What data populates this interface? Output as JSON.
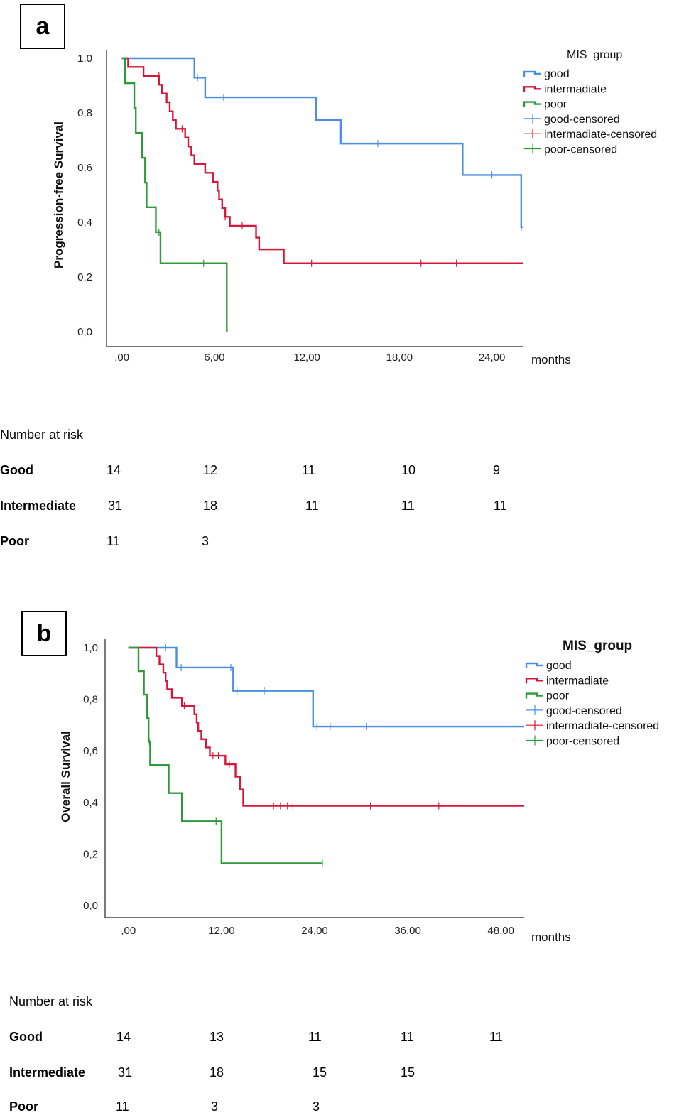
{
  "chart_data": [
    {
      "type": "line",
      "panel_label": "a",
      "ylabel": "Progression-free Survival",
      "xlabel": "months",
      "xlim": [
        -1,
        26
      ],
      "ylim": [
        0,
        1
      ],
      "x_ticks": [
        0,
        6,
        12,
        18,
        24
      ],
      "x_tick_labels": [
        ",00",
        "6,00",
        "12,00",
        "18,00",
        "24,00"
      ],
      "y_ticks": [
        0,
        0.2,
        0.4,
        0.6,
        0.8,
        1.0
      ],
      "y_tick_labels": [
        "0,0",
        "0,2",
        "0,4",
        "0,6",
        "0,8",
        "1,0"
      ],
      "legend_title": "MIS_group",
      "legend_position": "top-right",
      "legend_entries": [
        "good",
        "intermadiate",
        "poor",
        "good-censored",
        "intermadiate-censored",
        "poor-censored"
      ],
      "series": [
        {
          "name": "good",
          "color": "#4a90e2",
          "steps": [
            [
              0,
              1.0
            ],
            [
              4.7,
              0.929
            ],
            [
              5.4,
              0.857
            ],
            [
              12.6,
              0.774
            ],
            [
              14.2,
              0.688
            ],
            [
              22.1,
              0.573
            ],
            [
              25.9,
              0.382
            ]
          ],
          "end_x": 26.0,
          "censored": [
            [
              4.9,
              0.929
            ],
            [
              6.6,
              0.857
            ],
            [
              16.6,
              0.688
            ],
            [
              24.0,
              0.573
            ],
            [
              25.9,
              0.382
            ]
          ]
        },
        {
          "name": "intermadiate",
          "color": "#d6173a",
          "steps": [
            [
              0,
              1.0
            ],
            [
              0.4,
              0.968
            ],
            [
              1.4,
              0.935
            ],
            [
              2.4,
              0.903
            ],
            [
              2.6,
              0.871
            ],
            [
              2.9,
              0.839
            ],
            [
              3.1,
              0.806
            ],
            [
              3.3,
              0.774
            ],
            [
              3.5,
              0.742
            ],
            [
              4.1,
              0.71
            ],
            [
              4.3,
              0.677
            ],
            [
              4.5,
              0.645
            ],
            [
              4.7,
              0.613
            ],
            [
              5.4,
              0.581
            ],
            [
              5.9,
              0.548
            ],
            [
              6.2,
              0.516
            ],
            [
              6.3,
              0.484
            ],
            [
              6.5,
              0.452
            ],
            [
              6.7,
              0.42
            ],
            [
              7.0,
              0.387
            ],
            [
              8.7,
              0.344
            ],
            [
              8.9,
              0.301
            ],
            [
              10.5,
              0.25
            ]
          ],
          "end_x": 26.0,
          "censored": [
            [
              2.4,
              0.935
            ],
            [
              3.9,
              0.742
            ],
            [
              6.7,
              0.42
            ],
            [
              7.8,
              0.387
            ],
            [
              12.3,
              0.25
            ],
            [
              19.4,
              0.25
            ],
            [
              21.7,
              0.25
            ]
          ]
        },
        {
          "name": "poor",
          "color": "#2e9b3a",
          "steps": [
            [
              0,
              1.0
            ],
            [
              0.2,
              0.909
            ],
            [
              0.8,
              0.818
            ],
            [
              0.9,
              0.727
            ],
            [
              1.3,
              0.636
            ],
            [
              1.5,
              0.545
            ],
            [
              1.6,
              0.455
            ],
            [
              2.2,
              0.364
            ],
            [
              2.5,
              0.25
            ],
            [
              6.8,
              0.0
            ]
          ],
          "end_x": 6.8,
          "censored": [
            [
              2.4,
              0.364
            ],
            [
              5.3,
              0.25
            ]
          ]
        }
      ]
    },
    {
      "type": "line",
      "panel_label": "b",
      "ylabel": "Overall Survival",
      "xlabel": "months",
      "xlim": [
        -3,
        51
      ],
      "ylim": [
        0,
        1
      ],
      "x_ticks": [
        0,
        12,
        24,
        36,
        48
      ],
      "x_tick_labels": [
        ",00",
        "12,00",
        "24,00",
        "36,00",
        "48,00"
      ],
      "y_ticks": [
        0,
        0.2,
        0.4,
        0.6,
        0.8,
        1.0
      ],
      "y_tick_labels": [
        "0,0",
        "0,2",
        "0,4",
        "0,6",
        "0,8",
        "1,0"
      ],
      "legend_title": "MIS_group",
      "legend_position": "top-right",
      "legend_entries": [
        "good",
        "intermadiate",
        "poor",
        "good-censored",
        "intermadiate-censored",
        "poor-censored"
      ],
      "series": [
        {
          "name": "good",
          "color": "#4a90e2",
          "steps": [
            [
              0,
              1.0
            ],
            [
              6.2,
              0.923
            ],
            [
              13.5,
              0.833
            ],
            [
              23.8,
              0.694
            ]
          ],
          "end_x": 51.0,
          "censored": [
            [
              4.8,
              1.0
            ],
            [
              6.8,
              0.923
            ],
            [
              13.2,
              0.923
            ],
            [
              14.0,
              0.833
            ],
            [
              17.5,
              0.833
            ],
            [
              24.3,
              0.694
            ],
            [
              26.0,
              0.694
            ],
            [
              30.7,
              0.694
            ]
          ]
        },
        {
          "name": "intermadiate",
          "color": "#d6173a",
          "steps": [
            [
              0,
              1.0
            ],
            [
              3.6,
              0.968
            ],
            [
              4.0,
              0.935
            ],
            [
              4.5,
              0.903
            ],
            [
              4.8,
              0.871
            ],
            [
              5.0,
              0.839
            ],
            [
              5.6,
              0.806
            ],
            [
              6.9,
              0.774
            ],
            [
              8.5,
              0.742
            ],
            [
              8.8,
              0.71
            ],
            [
              9.0,
              0.677
            ],
            [
              9.4,
              0.645
            ],
            [
              10.0,
              0.613
            ],
            [
              10.5,
              0.581
            ],
            [
              12.5,
              0.548
            ],
            [
              13.8,
              0.5
            ],
            [
              14.4,
              0.45
            ],
            [
              14.8,
              0.387
            ]
          ],
          "end_x": 51.0,
          "censored": [
            [
              7.2,
              0.774
            ],
            [
              10.9,
              0.581
            ],
            [
              11.6,
              0.581
            ],
            [
              13.0,
              0.548
            ],
            [
              18.7,
              0.387
            ],
            [
              19.6,
              0.387
            ],
            [
              20.5,
              0.387
            ],
            [
              21.2,
              0.387
            ],
            [
              31.2,
              0.387
            ],
            [
              40.0,
              0.387
            ]
          ]
        },
        {
          "name": "poor",
          "color": "#2e9b3a",
          "steps": [
            [
              0,
              1.0
            ],
            [
              1.3,
              0.909
            ],
            [
              2.0,
              0.818
            ],
            [
              2.4,
              0.727
            ],
            [
              2.6,
              0.636
            ],
            [
              2.8,
              0.545
            ],
            [
              5.2,
              0.436
            ],
            [
              6.9,
              0.327
            ],
            [
              12.0,
              0.164
            ]
          ],
          "end_x": 25.0,
          "censored": [
            [
              2.7,
              0.636
            ],
            [
              11.3,
              0.327
            ],
            [
              25.0,
              0.164
            ]
          ]
        }
      ]
    }
  ],
  "risk_tables": [
    {
      "header": "Number at risk",
      "rows": [
        {
          "label": "Good",
          "values": [
            "14",
            "12",
            "11",
            "10",
            "9"
          ]
        },
        {
          "label": "Intermediate",
          "values": [
            "31",
            "18",
            "11",
            "11",
            "11"
          ]
        },
        {
          "label": "Poor",
          "values": [
            "11",
            "3"
          ]
        }
      ]
    },
    {
      "header": "Number at risk",
      "rows": [
        {
          "label": "Good",
          "values": [
            "14",
            "13",
            "11",
            "11",
            "11"
          ]
        },
        {
          "label": "Intermediate",
          "values": [
            "31",
            "18",
            "15",
            "15"
          ]
        },
        {
          "label": "Poor",
          "values": [
            "11",
            "3",
            "3"
          ]
        }
      ]
    }
  ]
}
